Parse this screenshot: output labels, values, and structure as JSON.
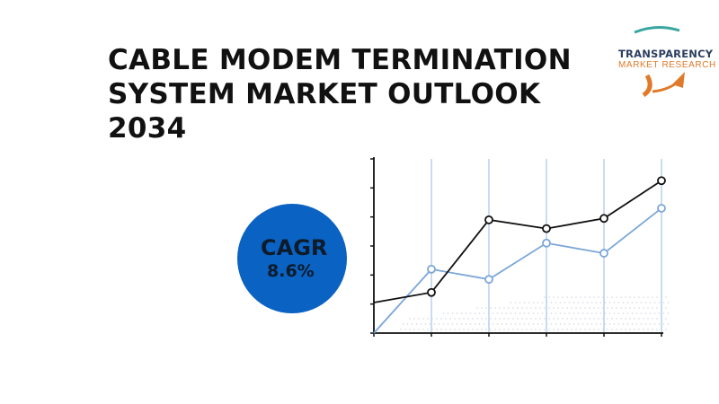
{
  "header": {
    "title_lines": [
      "CABLE MODEM TERMINATION",
      "SYSTEM MARKET OUTLOOK",
      "2034"
    ]
  },
  "logo": {
    "line1": "TRANSPARENCY",
    "line2": "MARKET RESEARCH",
    "icon": "growth-arrow-icon",
    "colors": {
      "navy": "#2c3e5f",
      "orange": "#e07a2a",
      "teal": "#3aa6a0"
    }
  },
  "cagr": {
    "label": "CAGR",
    "value": "8.6%",
    "color": "#0a62c2"
  },
  "chart_data": {
    "type": "line",
    "x": [
      0,
      1,
      2,
      3,
      4,
      5
    ],
    "ylim": [
      0,
      6
    ],
    "grid": true,
    "series": [
      {
        "color": "#111111",
        "values": [
          1.05,
          1.4,
          3.9,
          3.6,
          3.95,
          5.25
        ]
      },
      {
        "color": "#7ba7d8",
        "values": [
          0.0,
          2.2,
          1.85,
          3.1,
          2.75,
          4.3
        ]
      }
    ],
    "colors": {
      "grid": "#b9d0ee",
      "axis": "#111111",
      "dots": "#d2d6de"
    }
  }
}
